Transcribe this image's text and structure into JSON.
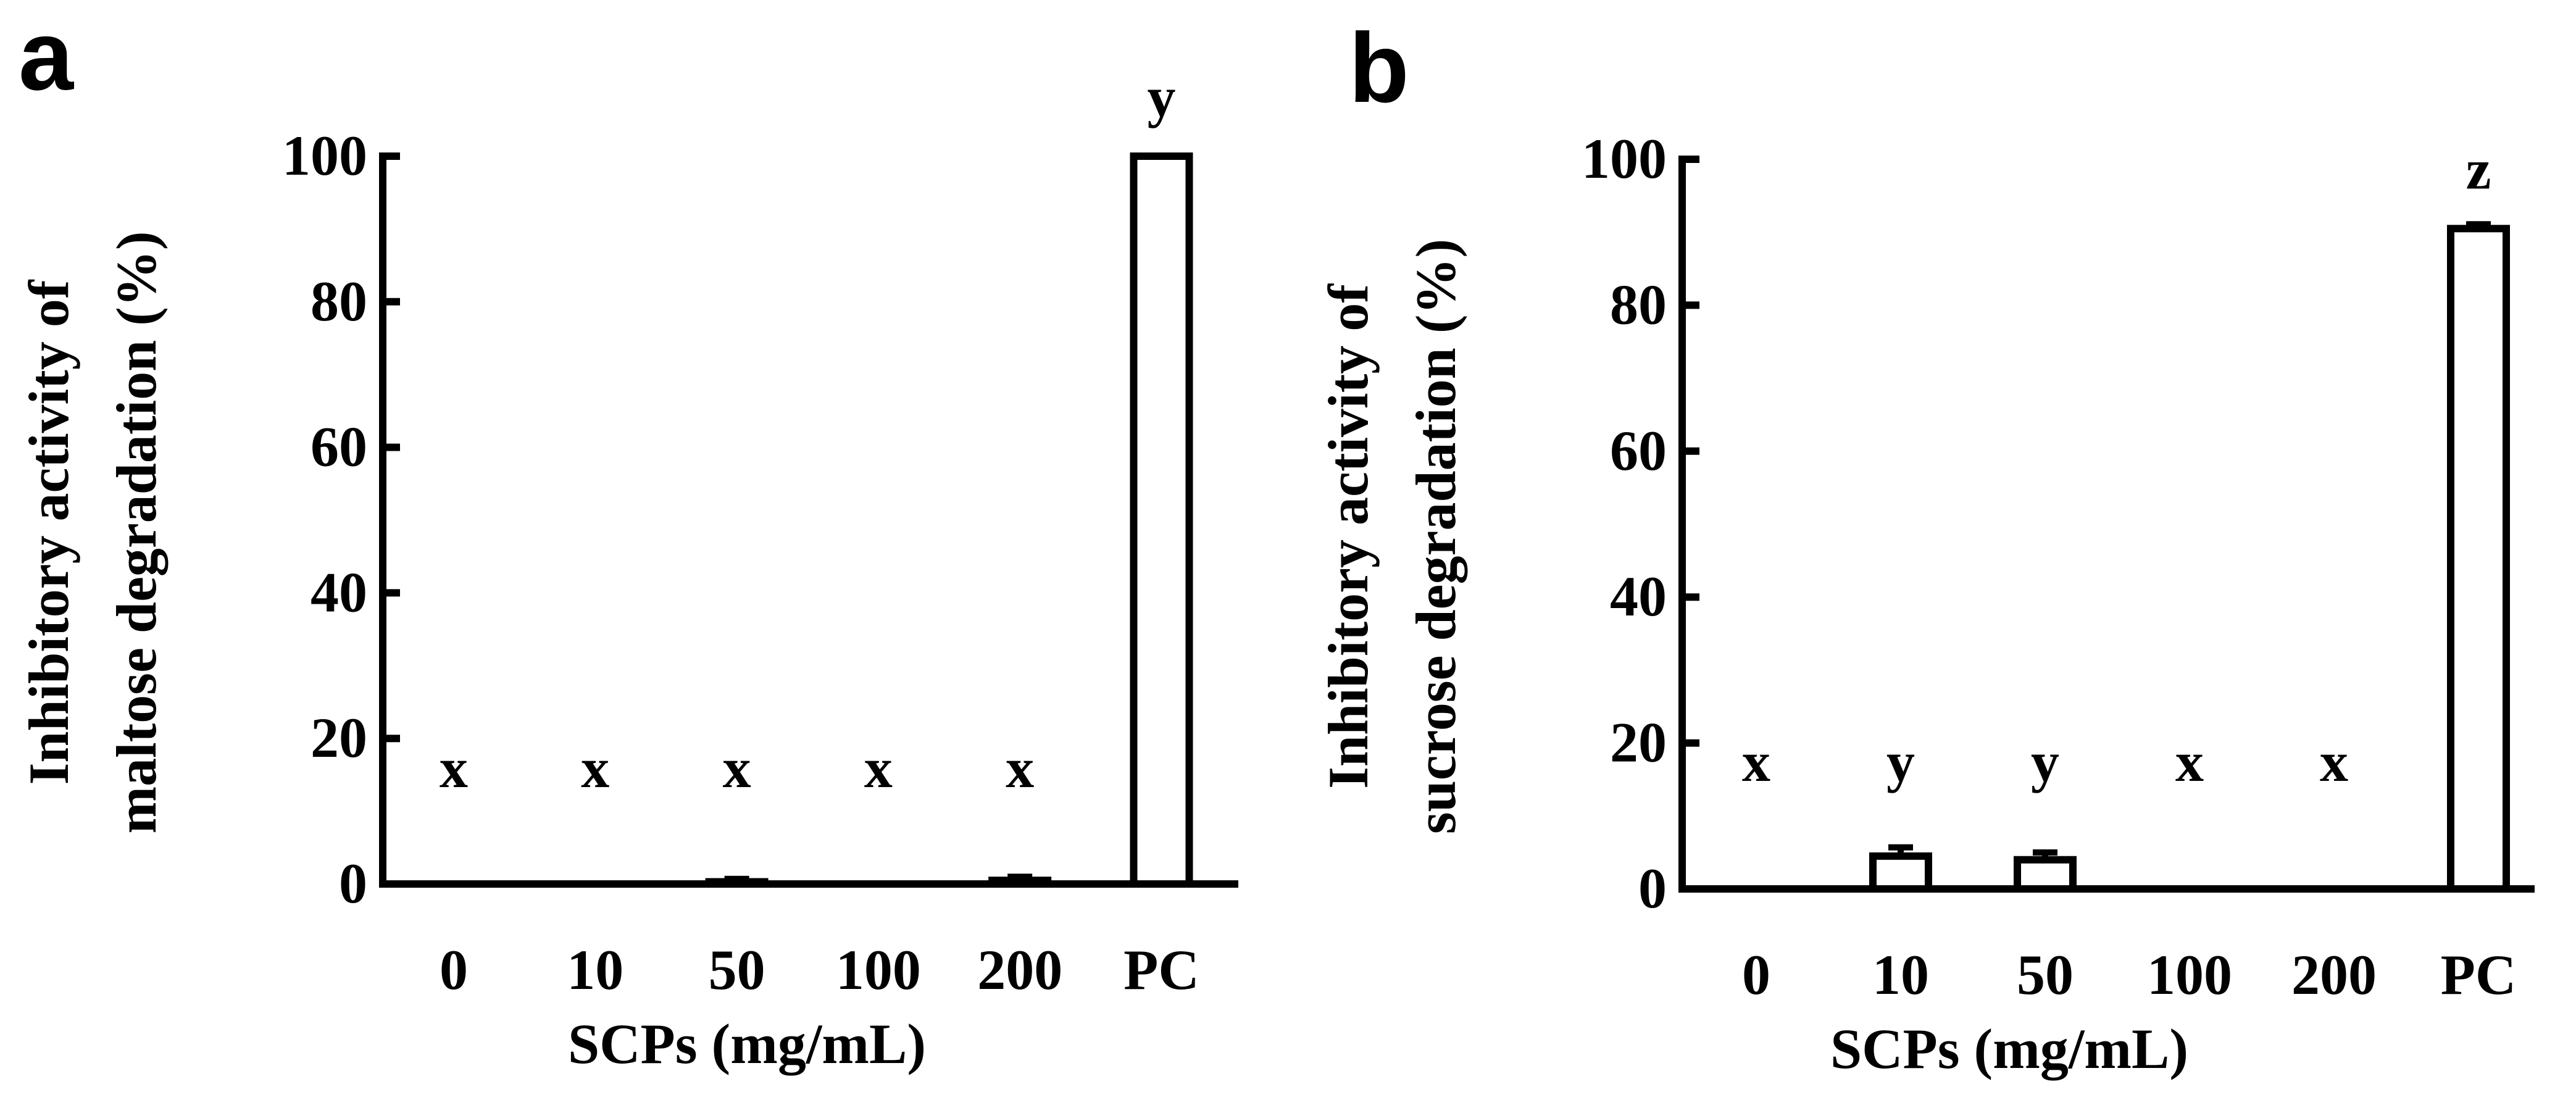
{
  "chart_data": [
    {
      "panel_label": "a",
      "type": "bar",
      "categories": [
        "0",
        "10",
        "50",
        "100",
        "200",
        "PC"
      ],
      "values": [
        0,
        0,
        0.3,
        0,
        0.5,
        100
      ],
      "errors": [
        0,
        0,
        0.4,
        0,
        0.5,
        0
      ],
      "significance_letters": [
        "x",
        "x",
        "x",
        "x",
        "x",
        "y"
      ],
      "ylabel_lines": [
        "Inhibitory activity of",
        "maltose degradation (%)"
      ],
      "xlabel": "SCPs (mg/mL)",
      "ylim": [
        0,
        100
      ],
      "yticks": [
        "0",
        "20",
        "40",
        "60",
        "80",
        "100"
      ],
      "grid": false,
      "legend": "none",
      "bar_fill": "#ffffff",
      "bar_edge": "#000000"
    },
    {
      "panel_label": "b",
      "type": "bar",
      "categories": [
        "0",
        "10",
        "50",
        "100",
        "200",
        "PC"
      ],
      "values": [
        0,
        4.5,
        4,
        0,
        0,
        90.5
      ],
      "errors": [
        0,
        1.2,
        1,
        0,
        0,
        0.6
      ],
      "significance_letters": [
        "x",
        "y",
        "y",
        "x",
        "x",
        "z"
      ],
      "ylabel_lines": [
        "Inhibitory activity of",
        "sucrose degradation (%)"
      ],
      "xlabel": "SCPs (mg/mL)",
      "ylim": [
        0,
        100
      ],
      "yticks": [
        "0",
        "20",
        "40",
        "60",
        "80",
        "100"
      ],
      "grid": false,
      "legend": "none",
      "bar_fill": "#ffffff",
      "bar_edge": "#000000"
    }
  ]
}
